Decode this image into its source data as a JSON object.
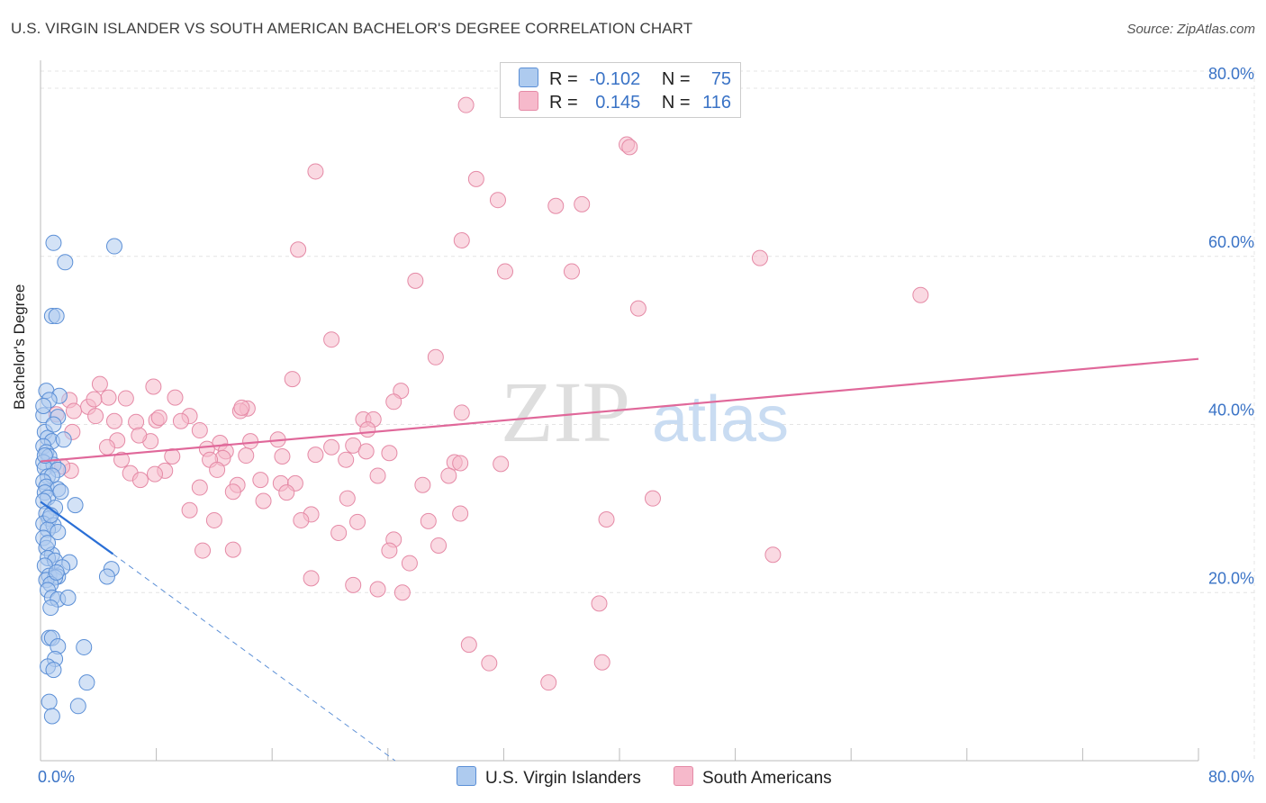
{
  "header": {
    "title": "U.S. VIRGIN ISLANDER VS SOUTH AMERICAN BACHELOR'S DEGREE CORRELATION CHART",
    "source": "Source: ZipAtlas.com"
  },
  "watermark": {
    "zip": "ZIP",
    "atlas": "atlas"
  },
  "legend": {
    "r_label": "R =",
    "n_label": "N =",
    "series1": {
      "r": "-0.102",
      "n": "75"
    },
    "series2": {
      "r": "0.145",
      "n": "116"
    }
  },
  "bottom_legend": {
    "series1": "U.S. Virgin Islanders",
    "series2": "South Americans"
  },
  "colors": {
    "blue_fill": "#aecbef",
    "blue_stroke": "#5b8fd6",
    "blue_line": "#2a6fd6",
    "pink_fill": "#f6b9cb",
    "pink_stroke": "#e58aa6",
    "pink_line": "#e0689a",
    "tick_text": "#3a73c6",
    "grid": "#e4e4e4"
  },
  "chart_data": {
    "type": "scatter",
    "title": "U.S. VIRGIN ISLANDER VS SOUTH AMERICAN BACHELOR'S DEGREE CORRELATION CHART",
    "xlabel": "",
    "ylabel": "Bachelor's Degree",
    "xlim": [
      0,
      80
    ],
    "ylim": [
      0,
      80
    ],
    "x_tick_labels": [
      "0.0%",
      "80.0%"
    ],
    "y_tick_labels": [
      {
        "value": 20,
        "label": "20.0%"
      },
      {
        "value": 40,
        "label": "40.0%"
      },
      {
        "value": 60,
        "label": "60.0%"
      },
      {
        "value": 80,
        "label": "80.0%"
      }
    ],
    "grid": true,
    "series": [
      {
        "name": "U.S. Virgin Islanders",
        "R": -0.102,
        "N": 75,
        "trend": {
          "x": [
            0,
            5
          ],
          "y": [
            30.8,
            24.6
          ]
        },
        "trend_extension": {
          "x": [
            5,
            24.5
          ],
          "y": [
            24.6,
            0
          ]
        },
        "points": [
          [
            0.9,
            61.6
          ],
          [
            5.1,
            61.2
          ],
          [
            1.7,
            59.3
          ],
          [
            0.8,
            52.9
          ],
          [
            1.1,
            52.9
          ],
          [
            0.4,
            44.0
          ],
          [
            1.3,
            43.4
          ],
          [
            0.6,
            42.9
          ],
          [
            0.2,
            41.1
          ],
          [
            1.2,
            40.9
          ],
          [
            0.3,
            39.1
          ],
          [
            0.5,
            38.4
          ],
          [
            0.8,
            38.0
          ],
          [
            1.6,
            38.2
          ],
          [
            0.2,
            37.4
          ],
          [
            0.4,
            36.7
          ],
          [
            0.6,
            36.2
          ],
          [
            0.2,
            35.5
          ],
          [
            0.9,
            35.2
          ],
          [
            0.3,
            34.8
          ],
          [
            1.2,
            34.6
          ],
          [
            0.5,
            33.8
          ],
          [
            0.8,
            33.9
          ],
          [
            0.2,
            33.2
          ],
          [
            0.4,
            32.6
          ],
          [
            1.2,
            32.3
          ],
          [
            0.3,
            31.9
          ],
          [
            0.5,
            31.3
          ],
          [
            0.2,
            30.9
          ],
          [
            2.4,
            30.4
          ],
          [
            1.0,
            30.1
          ],
          [
            0.4,
            29.4
          ],
          [
            0.6,
            28.8
          ],
          [
            0.2,
            28.2
          ],
          [
            0.9,
            28.0
          ],
          [
            0.5,
            27.5
          ],
          [
            1.2,
            27.2
          ],
          [
            0.2,
            26.5
          ],
          [
            0.4,
            25.3
          ],
          [
            0.8,
            24.5
          ],
          [
            0.5,
            24.1
          ],
          [
            1.0,
            23.8
          ],
          [
            2.0,
            23.6
          ],
          [
            0.3,
            23.2
          ],
          [
            1.5,
            23.0
          ],
          [
            4.9,
            22.8
          ],
          [
            0.6,
            22.0
          ],
          [
            1.2,
            21.9
          ],
          [
            1.0,
            21.8
          ],
          [
            4.6,
            21.9
          ],
          [
            0.4,
            21.5
          ],
          [
            0.7,
            21.0
          ],
          [
            0.5,
            20.3
          ],
          [
            0.8,
            19.4
          ],
          [
            1.2,
            19.2
          ],
          [
            1.9,
            19.4
          ],
          [
            0.7,
            18.2
          ],
          [
            0.6,
            14.6
          ],
          [
            0.8,
            14.6
          ],
          [
            1.2,
            13.6
          ],
          [
            3.0,
            13.5
          ],
          [
            1.0,
            12.1
          ],
          [
            0.5,
            11.2
          ],
          [
            0.9,
            10.8
          ],
          [
            3.2,
            9.3
          ],
          [
            0.6,
            7.0
          ],
          [
            2.6,
            6.5
          ],
          [
            0.8,
            5.3
          ],
          [
            0.3,
            36.3
          ],
          [
            0.7,
            29.2
          ],
          [
            1.1,
            22.4
          ],
          [
            0.2,
            42.2
          ],
          [
            0.9,
            40.0
          ],
          [
            1.4,
            32.0
          ],
          [
            0.5,
            25.9
          ]
        ]
      },
      {
        "name": "South Americans",
        "R": 0.145,
        "N": 116,
        "trend": {
          "x": [
            0,
            80
          ],
          "y": [
            35.6,
            47.8
          ]
        },
        "points": [
          [
            29.4,
            78.0
          ],
          [
            40.5,
            73.3
          ],
          [
            19.0,
            70.1
          ],
          [
            30.1,
            69.2
          ],
          [
            31.6,
            66.7
          ],
          [
            35.6,
            66.0
          ],
          [
            37.4,
            66.2
          ],
          [
            29.1,
            61.9
          ],
          [
            17.8,
            60.8
          ],
          [
            49.7,
            59.8
          ],
          [
            32.1,
            58.2
          ],
          [
            36.7,
            58.2
          ],
          [
            25.9,
            57.1
          ],
          [
            60.8,
            55.4
          ],
          [
            41.3,
            53.8
          ],
          [
            20.1,
            50.1
          ],
          [
            27.3,
            48.0
          ],
          [
            17.4,
            45.4
          ],
          [
            4.1,
            44.8
          ],
          [
            7.8,
            44.5
          ],
          [
            24.9,
            44.0
          ],
          [
            4.7,
            43.2
          ],
          [
            9.3,
            43.2
          ],
          [
            5.9,
            43.1
          ],
          [
            24.4,
            42.7
          ],
          [
            2.0,
            42.9
          ],
          [
            3.3,
            42.1
          ],
          [
            1.1,
            41.2
          ],
          [
            14.3,
            41.9
          ],
          [
            13.8,
            41.6
          ],
          [
            3.8,
            41.0
          ],
          [
            10.3,
            41.0
          ],
          [
            29.1,
            41.4
          ],
          [
            22.3,
            40.6
          ],
          [
            8.0,
            40.5
          ],
          [
            6.6,
            40.3
          ],
          [
            5.1,
            40.4
          ],
          [
            23.0,
            40.6
          ],
          [
            9.7,
            40.4
          ],
          [
            22.6,
            39.4
          ],
          [
            11.0,
            39.3
          ],
          [
            2.2,
            39.1
          ],
          [
            16.4,
            38.2
          ],
          [
            14.5,
            38.0
          ],
          [
            5.3,
            38.1
          ],
          [
            7.6,
            38.0
          ],
          [
            12.4,
            37.8
          ],
          [
            4.6,
            37.3
          ],
          [
            20.1,
            37.3
          ],
          [
            11.5,
            37.1
          ],
          [
            21.6,
            37.5
          ],
          [
            12.8,
            36.8
          ],
          [
            24.1,
            36.6
          ],
          [
            16.7,
            36.2
          ],
          [
            9.1,
            36.2
          ],
          [
            12.6,
            36.0
          ],
          [
            5.6,
            35.8
          ],
          [
            11.7,
            35.8
          ],
          [
            14.2,
            36.3
          ],
          [
            19.0,
            36.4
          ],
          [
            21.1,
            35.8
          ],
          [
            28.6,
            35.5
          ],
          [
            31.8,
            35.3
          ],
          [
            29.0,
            35.4
          ],
          [
            2.1,
            34.5
          ],
          [
            8.6,
            34.5
          ],
          [
            12.2,
            34.6
          ],
          [
            6.2,
            34.2
          ],
          [
            7.9,
            34.1
          ],
          [
            6.9,
            33.4
          ],
          [
            23.3,
            33.9
          ],
          [
            28.2,
            33.9
          ],
          [
            15.2,
            33.4
          ],
          [
            26.4,
            32.8
          ],
          [
            16.6,
            33.0
          ],
          [
            17.6,
            33.0
          ],
          [
            11.0,
            32.5
          ],
          [
            13.6,
            32.8
          ],
          [
            13.3,
            32.0
          ],
          [
            21.2,
            31.2
          ],
          [
            15.4,
            30.9
          ],
          [
            42.3,
            31.2
          ],
          [
            10.3,
            29.8
          ],
          [
            18.7,
            29.3
          ],
          [
            29.0,
            29.4
          ],
          [
            12.0,
            28.6
          ],
          [
            18.0,
            28.6
          ],
          [
            21.9,
            28.4
          ],
          [
            26.8,
            28.5
          ],
          [
            39.1,
            28.7
          ],
          [
            20.6,
            27.1
          ],
          [
            24.4,
            26.3
          ],
          [
            27.5,
            25.6
          ],
          [
            11.2,
            25.0
          ],
          [
            13.3,
            25.1
          ],
          [
            24.1,
            25.0
          ],
          [
            50.6,
            24.5
          ],
          [
            25.5,
            23.5
          ],
          [
            18.7,
            21.7
          ],
          [
            21.6,
            20.9
          ],
          [
            23.3,
            20.4
          ],
          [
            25.0,
            20.0
          ],
          [
            38.6,
            18.7
          ],
          [
            29.6,
            13.8
          ],
          [
            31.0,
            11.6
          ],
          [
            38.8,
            11.7
          ],
          [
            35.1,
            9.3
          ],
          [
            40.7,
            73.0
          ],
          [
            2.3,
            41.6
          ],
          [
            3.7,
            43.0
          ],
          [
            8.2,
            40.8
          ],
          [
            17.0,
            31.9
          ],
          [
            13.9,
            42.0
          ],
          [
            22.5,
            36.8
          ],
          [
            6.8,
            38.7
          ],
          [
            1.5,
            35.0
          ]
        ]
      }
    ]
  }
}
